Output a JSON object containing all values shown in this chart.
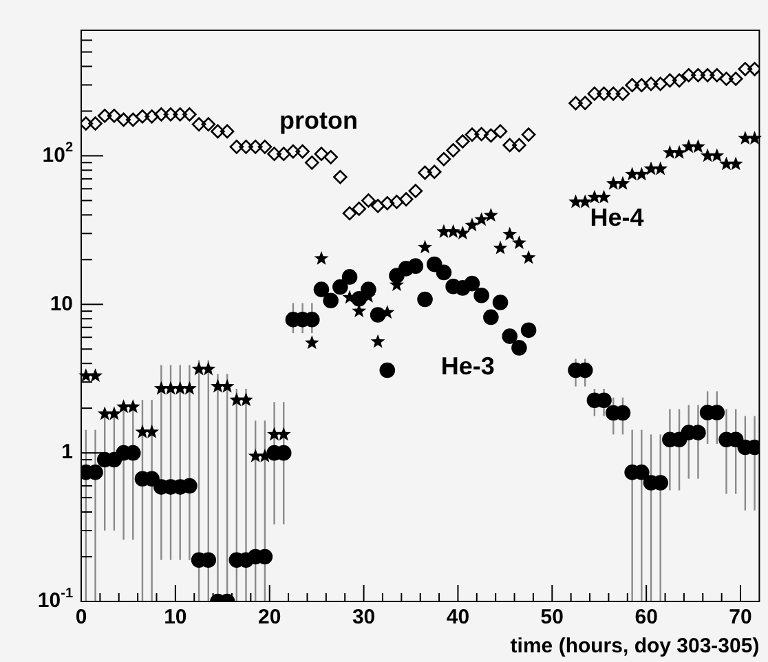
{
  "chart_data": {
    "type": "scatter",
    "xlabel": "time (hours, doy 303-305)",
    "log": "y",
    "xlim": [
      0,
      72
    ],
    "ylim": [
      0.1,
      700
    ],
    "xticks": [
      0,
      {
        "value": 2,
        "label": null
      },
      {
        "value": 4,
        "label": null
      },
      {
        "value": 6,
        "label": null
      },
      {
        "value": 8,
        "label": null
      },
      10,
      {
        "value": 12,
        "label": null
      },
      {
        "value": 14,
        "label": null
      },
      {
        "value": 16,
        "label": null
      },
      {
        "value": 18,
        "label": null
      },
      20,
      {
        "value": 22,
        "label": null
      },
      {
        "value": 24,
        "label": null
      },
      {
        "value": 26,
        "label": null
      },
      {
        "value": 28,
        "label": null
      },
      30,
      {
        "value": 32,
        "label": null
      },
      {
        "value": 34,
        "label": null
      },
      {
        "value": 36,
        "label": null
      },
      {
        "value": 38,
        "label": null
      },
      40,
      {
        "value": 42,
        "label": null
      },
      {
        "value": 44,
        "label": null
      },
      {
        "value": 46,
        "label": null
      },
      {
        "value": 48,
        "label": null
      },
      50,
      {
        "value": 52,
        "label": null
      },
      {
        "value": 54,
        "label": null
      },
      {
        "value": 56,
        "label": null
      },
      {
        "value": 58,
        "label": null
      },
      60,
      {
        "value": 62,
        "label": null
      },
      {
        "value": 64,
        "label": null
      },
      {
        "value": 66,
        "label": null
      },
      {
        "value": 68,
        "label": null
      },
      70
    ],
    "yticks": [
      {
        "value": 0.1,
        "label": "10$^{-1}$"
      },
      {
        "value": 0.2,
        "label": null
      },
      {
        "value": 0.3,
        "label": null
      },
      {
        "value": 0.4,
        "label": null
      },
      {
        "value": 0.5,
        "label": null
      },
      {
        "value": 0.6,
        "label": null
      },
      {
        "value": 0.7,
        "label": null
      },
      {
        "value": 0.8,
        "label": null
      },
      {
        "value": 0.9,
        "label": null
      },
      1,
      {
        "value": 2,
        "label": null
      },
      {
        "value": 3,
        "label": null
      },
      {
        "value": 4,
        "label": null
      },
      {
        "value": 5,
        "label": null
      },
      {
        "value": 6,
        "label": null
      },
      {
        "value": 7,
        "label": null
      },
      {
        "value": 8,
        "label": null
      },
      {
        "value": 9,
        "label": null
      },
      10,
      {
        "value": 20,
        "label": null
      },
      {
        "value": 30,
        "label": null
      },
      {
        "value": 40,
        "label": null
      },
      {
        "value": 50,
        "label": null
      },
      {
        "value": 60,
        "label": null
      },
      {
        "value": 70,
        "label": null
      },
      {
        "value": 80,
        "label": null
      },
      {
        "value": 90,
        "label": null
      },
      {
        "value": 100,
        "label": "10$^{2}$"
      },
      {
        "value": 200,
        "label": null
      },
      {
        "value": 300,
        "label": null
      },
      {
        "value": 400,
        "label": null
      },
      {
        "value": 500,
        "label": null
      },
      {
        "value": 600,
        "label": null
      },
      {
        "value": 700,
        "label": null
      }
    ],
    "x": [
      0.5,
      1.5,
      2.5,
      3.5,
      4.5,
      5.5,
      6.5,
      7.5,
      8.5,
      9.5,
      10.5,
      11.5,
      12.5,
      13.5,
      14.5,
      15.5,
      16.5,
      17.5,
      18.5,
      19.5,
      20.5,
      21.5,
      22.5,
      23.5,
      24.5,
      25.5,
      26.5,
      27.5,
      28.5,
      29.5,
      30.5,
      31.5,
      32.5,
      33.5,
      34.5,
      35.5,
      36.5,
      37.5,
      38.5,
      39.5,
      40.5,
      41.5,
      42.5,
      43.5,
      44.5,
      45.5,
      46.5,
      47.5,
      48.5,
      49.5,
      50.5,
      51.5,
      52.5,
      53.5,
      54.5,
      55.5,
      56.5,
      57.5,
      58.5,
      59.5,
      60.5,
      61.5,
      62.5,
      63.5,
      64.5,
      65.5,
      66.5,
      67.5,
      68.5,
      69.5,
      70.5,
      71.5
    ],
    "series": [
      {
        "name": "proton",
        "color": "#000000",
        "marker": "diamond",
        "values": [
          165,
          165,
          186,
          186,
          175,
          175,
          184,
          184,
          190,
          190,
          190,
          190,
          163,
          163,
          146,
          146,
          115,
          115,
          115,
          115,
          103,
          103,
          107,
          107,
          90,
          103,
          98,
          72,
          41,
          44,
          50,
          46,
          48,
          49,
          51,
          58,
          77,
          78,
          95,
          109,
          125,
          139,
          140,
          137,
          146,
          118,
          118,
          139,
          null,
          null,
          null,
          null,
          226,
          227,
          262,
          262,
          262,
          262,
          299,
          299,
          305,
          305,
          322,
          322,
          349,
          349,
          349,
          349,
          330,
          330,
          384,
          384
        ]
      },
      {
        "name": "He-4",
        "color": "#000000",
        "marker": "star",
        "values": [
          3.3,
          3.3,
          1.83,
          1.83,
          2.04,
          2.04,
          1.38,
          1.38,
          2.71,
          2.71,
          2.71,
          2.71,
          3.66,
          3.66,
          2.8,
          2.8,
          2.27,
          2.27,
          0.95,
          0.95,
          1.33,
          1.33,
          null,
          null,
          5.5,
          20.3,
          null,
          null,
          11.1,
          9.0,
          11.3,
          5.6,
          8.8,
          13.5,
          null,
          null,
          24.2,
          null,
          30.8,
          30.8,
          30.1,
          34.1,
          37.2,
          39.7,
          23.9,
          29.6,
          25.9,
          20.6,
          null,
          null,
          null,
          null,
          48.9,
          48.9,
          52.6,
          52.6,
          65,
          65,
          75,
          75,
          81.6,
          81.6,
          105,
          105,
          115,
          115,
          100,
          100,
          88,
          88,
          131,
          131
        ]
      },
      {
        "name": "He-3",
        "color": "#000000",
        "marker": "circle",
        "values": [
          0.74,
          0.74,
          0.9,
          0.9,
          1.0,
          1.0,
          0.67,
          0.67,
          0.59,
          0.59,
          0.59,
          0.6,
          0.19,
          0.19,
          0.1,
          0.1,
          0.19,
          0.19,
          0.2,
          0.2,
          1.0,
          1.0,
          7.9,
          7.9,
          7.9,
          12.6,
          10.6,
          13.1,
          15.3,
          10.9,
          12.6,
          8.5,
          3.6,
          15.6,
          17.4,
          18.1,
          10.8,
          18.6,
          16.4,
          13.2,
          12.9,
          13.8,
          11.5,
          8.2,
          10.3,
          6.1,
          5.1,
          6.7,
          null,
          null,
          null,
          null,
          3.6,
          3.6,
          2.26,
          2.26,
          1.86,
          1.86,
          0.74,
          0.74,
          0.63,
          0.63,
          1.23,
          1.23,
          1.37,
          1.37,
          1.87,
          1.87,
          1.23,
          1.23,
          1.09,
          1.09
        ],
        "errors": [
          [
            0.1,
            1.43
          ],
          [
            0.1,
            1.43
          ],
          [
            0.3,
            1.83
          ],
          [
            0.3,
            1.83
          ],
          [
            0.26,
            2.04
          ],
          [
            0.26,
            2.04
          ],
          [
            0.1,
            2.27
          ],
          [
            0.1,
            2.27
          ],
          [
            0.19,
            3.9
          ],
          [
            0.19,
            3.9
          ],
          [
            0.19,
            3.9
          ],
          [
            0.19,
            3.9
          ],
          [
            0.1,
            4.2
          ],
          [
            0.1,
            4.2
          ],
          [
            0.1,
            3.4
          ],
          [
            0.1,
            3.4
          ],
          [
            0.1,
            2.7
          ],
          [
            0.1,
            2.7
          ],
          [
            0.1,
            1.65
          ],
          [
            0.1,
            1.65
          ],
          [
            0.33,
            2.2
          ],
          [
            0.33,
            2.2
          ],
          [
            6.4,
            10.2
          ],
          [
            6.4,
            10.2
          ],
          [
            6.4,
            10.2
          ],
          null,
          null,
          null,
          null,
          null,
          null,
          null,
          null,
          null,
          null,
          null,
          null,
          null,
          null,
          null,
          null,
          null,
          null,
          null,
          null,
          null,
          null,
          null,
          null,
          null,
          null,
          null,
          [
            2.8,
            4.3
          ],
          [
            2.8,
            4.3
          ],
          [
            1.77,
            2.7
          ],
          [
            1.77,
            2.7
          ],
          [
            1.33,
            2.36
          ],
          [
            1.33,
            2.36
          ],
          [
            0.1,
            1.43
          ],
          [
            0.1,
            1.43
          ],
          [
            0.1,
            1.33
          ],
          [
            0.1,
            1.33
          ],
          [
            0.56,
            1.97
          ],
          [
            0.56,
            1.97
          ],
          [
            0.67,
            2.1
          ],
          [
            0.67,
            2.1
          ],
          [
            1.15,
            2.6
          ],
          [
            1.15,
            2.6
          ],
          [
            0.53,
            1.97
          ],
          [
            0.53,
            1.97
          ],
          [
            0.41,
            1.77
          ],
          [
            0.41,
            1.77
          ]
        ]
      }
    ]
  }
}
